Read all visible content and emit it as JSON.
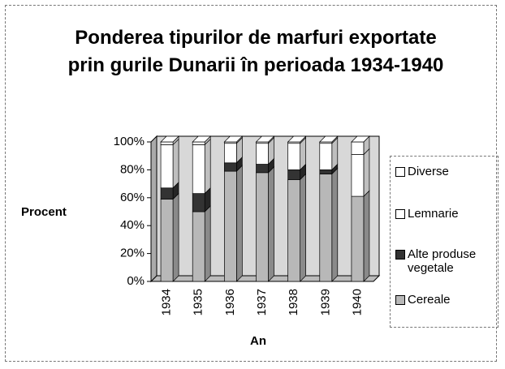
{
  "chart_data": {
    "type": "bar",
    "stacked": true,
    "title": "Ponderea tipurilor de marfuri exportate prin gurile Dunarii în perioada 1934-1940",
    "x_label": "An",
    "y_label": "Procent",
    "categories": [
      "1934",
      "1935",
      "1936",
      "1937",
      "1938",
      "1939",
      "1940"
    ],
    "series": [
      {
        "name": "Cereale",
        "color": "#b8b8b8",
        "values": [
          59,
          50,
          79,
          78,
          73,
          77,
          61
        ]
      },
      {
        "name": "Alte produse vegetale",
        "color": "#333333",
        "values": [
          8,
          13,
          6,
          6,
          7,
          3,
          0
        ]
      },
      {
        "name": "Lemnarie",
        "color": "#ffffff",
        "values": [
          31,
          35,
          14,
          15,
          19,
          19,
          30
        ]
      },
      {
        "name": "Diverse",
        "color": "#ffffff",
        "values": [
          2,
          2,
          1,
          1,
          1,
          1,
          9
        ]
      }
    ],
    "ylim": [
      0,
      100
    ],
    "yticks": [
      {
        "value": 0,
        "label": "0%"
      },
      {
        "value": 20,
        "label": "20%"
      },
      {
        "value": 40,
        "label": "40%"
      },
      {
        "value": 60,
        "label": "60%"
      },
      {
        "value": 80,
        "label": "80%"
      },
      {
        "value": 100,
        "label": "100%"
      }
    ],
    "legend": "right"
  }
}
